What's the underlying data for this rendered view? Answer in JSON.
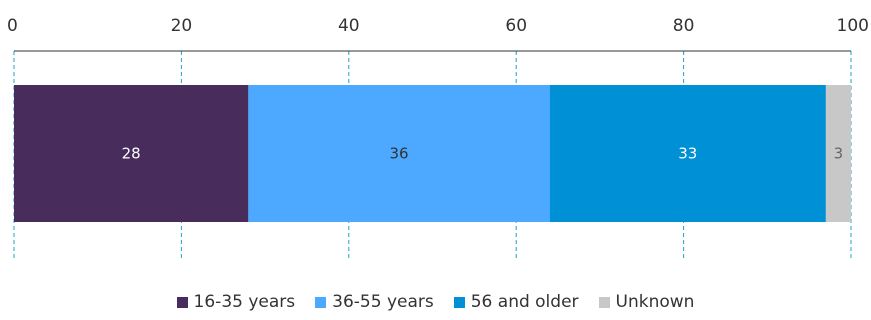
{
  "chart_data": {
    "type": "bar",
    "orientation": "horizontal",
    "stacked": true,
    "title": "",
    "xlabel": "",
    "ylabel": "",
    "xlim": [
      0,
      100
    ],
    "ticks": [
      0,
      20,
      40,
      60,
      80,
      100
    ],
    "grid": true,
    "legend_position": "bottom-center",
    "series": [
      {
        "name": "16-35 years",
        "value": 28,
        "color": "#472c5c",
        "label_color": "#ffffff"
      },
      {
        "name": "36-55 years",
        "value": 36,
        "color": "#4da9ff",
        "label_color": "#333333"
      },
      {
        "name": "56 and older",
        "value": 33,
        "color": "#0090d6",
        "label_color": "#ffffff"
      },
      {
        "name": "Unknown",
        "value": 3,
        "color": "#c8c8c8",
        "label_color": "#666666"
      }
    ]
  }
}
